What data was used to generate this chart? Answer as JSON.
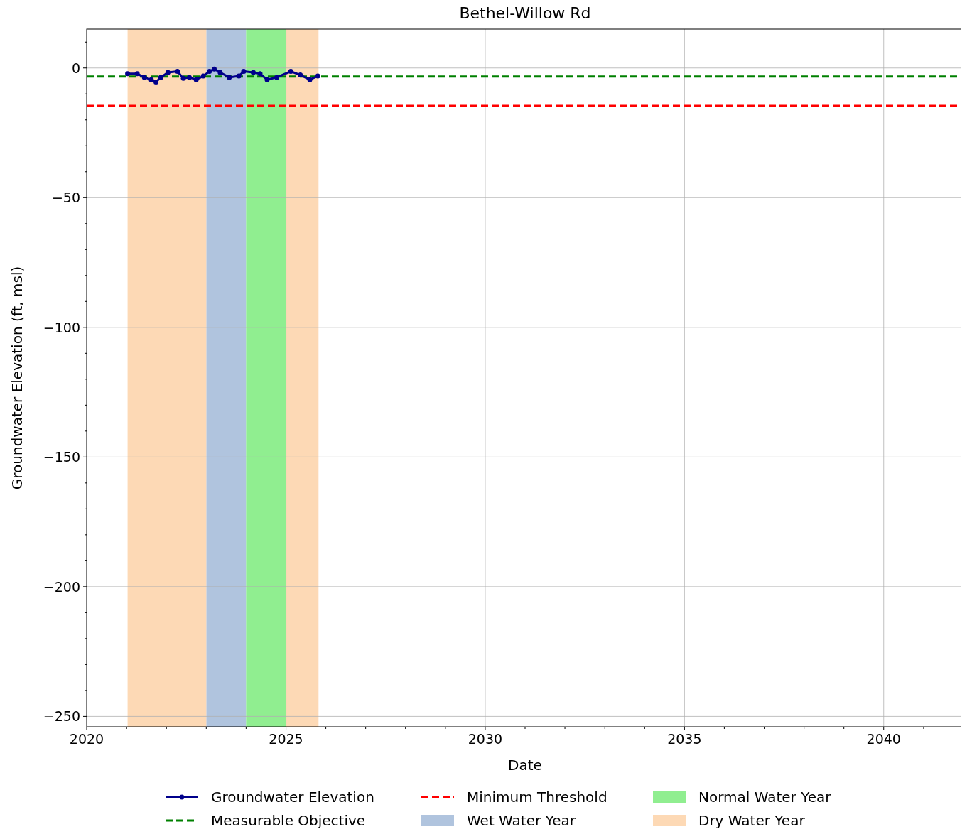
{
  "chart_data": {
    "type": "line",
    "title": "Bethel-Willow Rd",
    "xlabel": "Date",
    "ylabel": "Groundwater Elevation (ft, msl)",
    "x": [
      "2021-01-10",
      "2021-04-08",
      "2021-06-13",
      "2021-08-15",
      "2021-09-27",
      "2021-11-10",
      "2022-01-15",
      "2022-04-12",
      "2022-06-05",
      "2022-07-30",
      "2022-10-01",
      "2022-12-05",
      "2023-01-30",
      "2023-03-15",
      "2023-05-08",
      "2023-07-31",
      "2023-10-27",
      "2023-12-10",
      "2024-03-07",
      "2024-05-08",
      "2024-07-12",
      "2024-10-08",
      "2025-02-14",
      "2025-05-12",
      "2025-08-07",
      "2025-10-19"
    ],
    "series": [
      {
        "name": "Groundwater Elevation",
        "color": "#00008b",
        "values": [
          -2.2,
          -2.2,
          -3.6,
          -4.5,
          -5.4,
          -3.6,
          -1.7,
          -1.3,
          -4.0,
          -3.6,
          -4.5,
          -3.1,
          -1.3,
          -0.4,
          -1.7,
          -3.6,
          -3.1,
          -1.3,
          -1.7,
          -2.2,
          -4.5,
          -3.6,
          -1.3,
          -2.7,
          -4.5,
          -3.1
        ]
      }
    ],
    "marker": "circle",
    "line_style": "solid",
    "xlim": [
      "2020-01-01",
      "2042-01-01"
    ],
    "xticks": [
      {
        "value": "2020-01-01",
        "label": "2020"
      },
      {
        "value": "2021-01-01",
        "label": null
      },
      {
        "value": "2022-01-01",
        "label": null
      },
      {
        "value": "2023-01-01",
        "label": null
      },
      {
        "value": "2024-01-01",
        "label": null
      },
      {
        "value": "2025-01-01",
        "label": "2025"
      },
      {
        "value": "2026-01-01",
        "label": null
      },
      {
        "value": "2027-01-01",
        "label": null
      },
      {
        "value": "2028-01-01",
        "label": null
      },
      {
        "value": "2029-01-01",
        "label": null
      },
      {
        "value": "2030-01-01",
        "label": "2030"
      },
      {
        "value": "2031-01-01",
        "label": null
      },
      {
        "value": "2032-01-01",
        "label": null
      },
      {
        "value": "2033-01-01",
        "label": null
      },
      {
        "value": "2034-01-01",
        "label": null
      },
      {
        "value": "2035-01-01",
        "label": "2035"
      },
      {
        "value": "2036-01-01",
        "label": null
      },
      {
        "value": "2037-01-01",
        "label": null
      },
      {
        "value": "2038-01-01",
        "label": null
      },
      {
        "value": "2039-01-01",
        "label": null
      },
      {
        "value": "2040-01-01",
        "label": "2040"
      },
      {
        "value": "2041-01-01",
        "label": null
      }
    ],
    "ylim": [
      -254,
      15
    ],
    "yticks": [
      {
        "value": -250,
        "label": "−250"
      },
      {
        "value": -240,
        "label": null
      },
      {
        "value": -230,
        "label": null
      },
      {
        "value": -220,
        "label": null
      },
      {
        "value": -210,
        "label": null
      },
      {
        "value": -200,
        "label": "−200"
      },
      {
        "value": -190,
        "label": null
      },
      {
        "value": -180,
        "label": null
      },
      {
        "value": -170,
        "label": null
      },
      {
        "value": -160,
        "label": null
      },
      {
        "value": -150,
        "label": "−150"
      },
      {
        "value": -140,
        "label": null
      },
      {
        "value": -130,
        "label": null
      },
      {
        "value": -120,
        "label": null
      },
      {
        "value": -110,
        "label": null
      },
      {
        "value": -100,
        "label": "−100"
      },
      {
        "value": -90,
        "label": null
      },
      {
        "value": -80,
        "label": null
      },
      {
        "value": -70,
        "label": null
      },
      {
        "value": -60,
        "label": null
      },
      {
        "value": -50,
        "label": "−50"
      },
      {
        "value": -40,
        "label": null
      },
      {
        "value": -30,
        "label": null
      },
      {
        "value": -20,
        "label": null
      },
      {
        "value": -10,
        "label": null
      },
      0,
      {
        "value": 10,
        "label": null
      }
    ],
    "grid": true,
    "legend": "bottom",
    "ref_lines": [
      {
        "axis": "y",
        "value": -3.3,
        "label": "Measurable Objective",
        "color": "#008000",
        "line_style": "dashed"
      },
      {
        "axis": "y",
        "value": -14.6,
        "label": "Minimum Threshold",
        "color": "#ff0000",
        "line_style": "dashed"
      }
    ],
    "bands": [
      {
        "axis": "x",
        "from": "2023-01-01",
        "to": "2024-01-01",
        "label": "Wet Water Year",
        "color": "#b0c4de"
      },
      {
        "axis": "x",
        "from": "2024-01-01",
        "to": "2025-01-01",
        "label": "Normal Water Year",
        "color": "#90ee90"
      },
      {
        "axis": "x",
        "from": "2025-01-01",
        "to": "2025-10-26",
        "label": "Dry Water Year",
        "color": "#fdd9b5"
      },
      {
        "axis": "x",
        "from": "2021-01-10",
        "to": "2023-01-01",
        "color": "#fdd9b5"
      }
    ]
  }
}
